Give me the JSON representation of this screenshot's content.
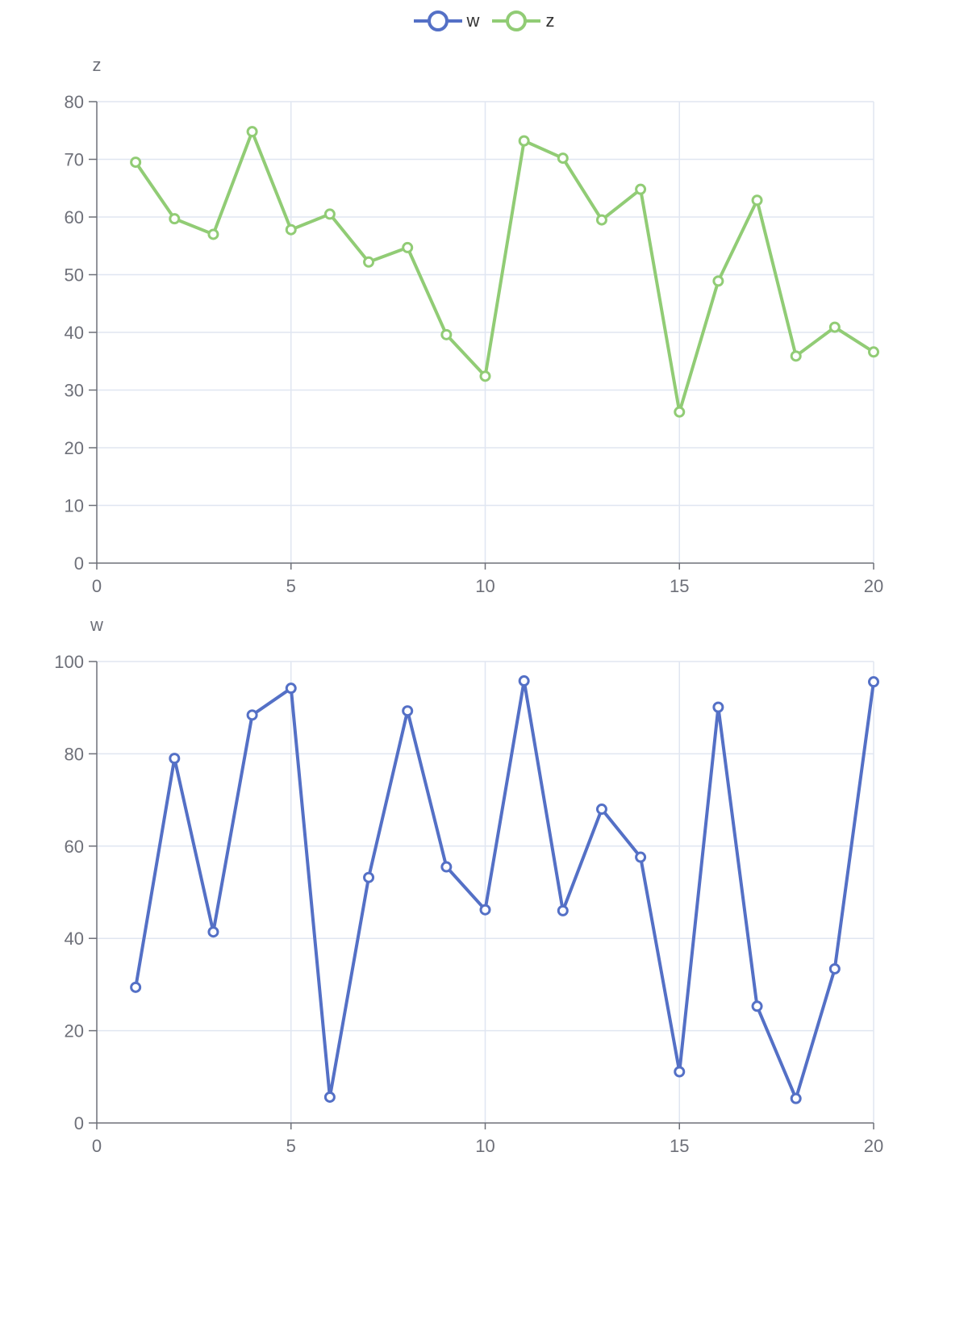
{
  "legend": [
    {
      "name": "w",
      "color": "#5470c6",
      "icon": "line-circle-icon"
    },
    {
      "name": "z",
      "color": "#91cc75",
      "icon": "line-circle-icon"
    }
  ],
  "chart_data": [
    {
      "type": "line",
      "series_name": "z",
      "color": "#91cc75",
      "ylabel": "z",
      "xlabel": "",
      "xlim": [
        0,
        20
      ],
      "ylim": [
        0,
        80
      ],
      "x_ticks": [
        0,
        5,
        10,
        15,
        20
      ],
      "y_ticks": [
        0,
        10,
        20,
        30,
        40,
        50,
        60,
        70,
        80
      ],
      "grid": true,
      "x": [
        1,
        2,
        3,
        4,
        5,
        6,
        7,
        8,
        9,
        10,
        11,
        12,
        13,
        14,
        15,
        16,
        17,
        18,
        19,
        20
      ],
      "values": [
        69.5,
        59.7,
        57,
        74.8,
        57.8,
        60.5,
        52.2,
        54.7,
        39.6,
        32.4,
        73.2,
        70.2,
        59.5,
        64.8,
        26.2,
        48.9,
        62.9,
        35.9,
        40.9,
        36.6
      ]
    },
    {
      "type": "line",
      "series_name": "w",
      "color": "#5470c6",
      "ylabel": "w",
      "xlabel": "",
      "xlim": [
        0,
        20
      ],
      "ylim": [
        0,
        100
      ],
      "x_ticks": [
        0,
        5,
        10,
        15,
        20
      ],
      "y_ticks": [
        0,
        20,
        40,
        60,
        80,
        100
      ],
      "grid": true,
      "x": [
        1,
        2,
        3,
        4,
        5,
        6,
        7,
        8,
        9,
        10,
        11,
        12,
        13,
        14,
        15,
        16,
        17,
        18,
        19,
        20
      ],
      "values": [
        29.4,
        79,
        41.4,
        88.4,
        94.2,
        5.6,
        53.2,
        89.3,
        55.5,
        46.2,
        95.8,
        46,
        68,
        57.6,
        11.1,
        90.1,
        25.3,
        5.3,
        33.4,
        95.6
      ]
    }
  ]
}
